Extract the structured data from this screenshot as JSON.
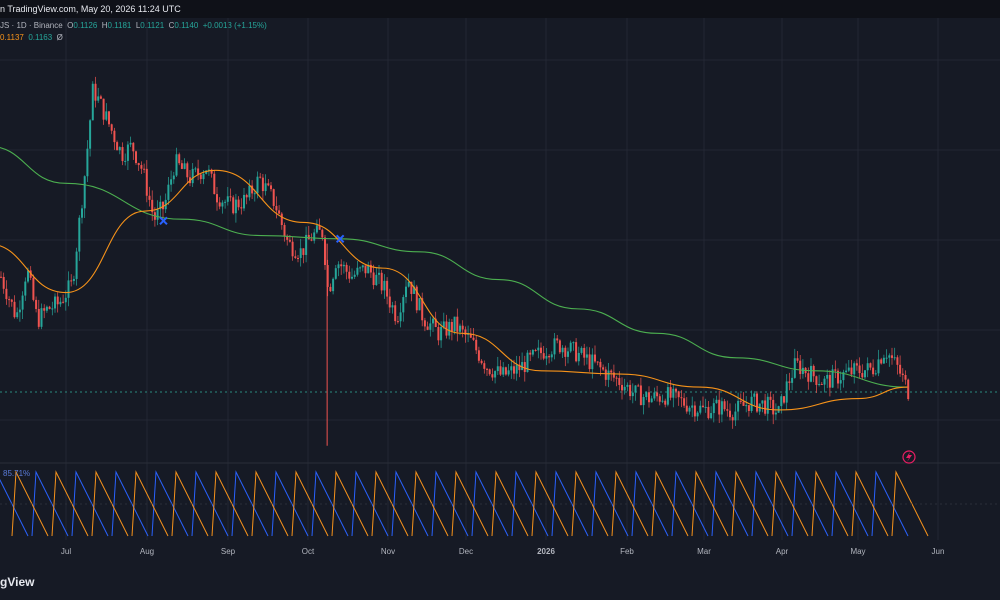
{
  "header": {
    "text": "n TradingView.com, May 20, 2026 11:24 UTC"
  },
  "legend": {
    "symbol": "JS · 1D · Binance",
    "o_label": "O",
    "o": "0.1126",
    "h_label": "H",
    "h": "0.1181",
    "l_label": "L",
    "l": "0.1121",
    "c_label": "C",
    "c": "0.1140",
    "change": "+0.0013 (+1.15%)",
    "ma1": "0.1137",
    "ma2": "0.1163",
    "ma3": "Ø"
  },
  "oscillator": {
    "label": "85.71%",
    "colors": [
      "#f7931a",
      "#2962ff"
    ]
  },
  "brand": {
    "text": "gView"
  },
  "chart_data": {
    "type": "candlestick",
    "x_ticks": [
      "Jul",
      "Aug",
      "Sep",
      "Oct",
      "Nov",
      "Dec",
      "2026",
      "Feb",
      "Mar",
      "Apr",
      "May",
      "Jun"
    ],
    "last_price": 0.114,
    "colors": {
      "up": "#26a69a",
      "down": "#ef5350",
      "ma_fast": "#f7931a",
      "ma_slow": "#4caf50",
      "cross": "#2962ff"
    },
    "price_keypoints": [
      [
        "Jun 01",
        0.175
      ],
      [
        "Jun 06",
        0.185
      ],
      [
        "Jun 12",
        0.16
      ],
      [
        "Jun 16",
        0.19
      ],
      [
        "Jun 20",
        0.158
      ],
      [
        "Jun 24",
        0.165
      ],
      [
        "Jun 28",
        0.168
      ],
      [
        "Jul 03",
        0.18
      ],
      [
        "Jul 08",
        0.25
      ],
      [
        "Jul 11",
        0.3
      ],
      [
        "Jul 14",
        0.29
      ],
      [
        "Jul 18",
        0.275
      ],
      [
        "Jul 22",
        0.26
      ],
      [
        "Jul 26",
        0.265
      ],
      [
        "Jul 30",
        0.25
      ],
      [
        "Aug 04",
        0.22
      ],
      [
        "Aug 08",
        0.228
      ],
      [
        "Aug 12",
        0.255
      ],
      [
        "Aug 18",
        0.245
      ],
      [
        "Aug 24",
        0.252
      ],
      [
        "Aug 28",
        0.235
      ],
      [
        "Sep 03",
        0.228
      ],
      [
        "Sep 09",
        0.232
      ],
      [
        "Sep 14",
        0.245
      ],
      [
        "Sep 20",
        0.23
      ],
      [
        "Sep 25",
        0.205
      ],
      [
        "Sep 30",
        0.2
      ],
      [
        "Oct 04",
        0.21
      ],
      [
        "Oct 08",
        0.212
      ],
      [
        "Oct 10",
        0.175
      ],
      [
        "Oct 13",
        0.195
      ],
      [
        "Oct 19",
        0.185
      ],
      [
        "Oct 25",
        0.19
      ],
      [
        "Nov 01",
        0.178
      ],
      [
        "Nov 06",
        0.16
      ],
      [
        "Nov 10",
        0.185
      ],
      [
        "Nov 16",
        0.16
      ],
      [
        "Nov 22",
        0.15
      ],
      [
        "Nov 28",
        0.155
      ],
      [
        "Dec 04",
        0.145
      ],
      [
        "Dec 10",
        0.13
      ],
      [
        "Dec 16",
        0.124
      ],
      [
        "Dec 22",
        0.128
      ],
      [
        "Dec 28",
        0.135
      ],
      [
        "Jan 03",
        0.141
      ],
      [
        "Jan 08",
        0.143
      ],
      [
        "Jan 14",
        0.138
      ],
      [
        "Jan 20",
        0.132
      ],
      [
        "Jan 26",
        0.125
      ],
      [
        "Feb 01",
        0.12
      ],
      [
        "Feb 06",
        0.113
      ],
      [
        "Feb 12",
        0.11
      ],
      [
        "Feb 18",
        0.112
      ],
      [
        "Feb 24",
        0.108
      ],
      [
        "Mar 02",
        0.103
      ],
      [
        "Mar 08",
        0.105
      ],
      [
        "Mar 14",
        0.102
      ],
      [
        "Mar 20",
        0.108
      ],
      [
        "Mar 26",
        0.106
      ],
      [
        "Mar 31",
        0.101
      ],
      [
        "Apr 03",
        0.115
      ],
      [
        "Apr 07",
        0.131
      ],
      [
        "Apr 12",
        0.126
      ],
      [
        "Apr 18",
        0.12
      ],
      [
        "Apr 24",
        0.124
      ],
      [
        "Apr 30",
        0.127
      ],
      [
        "May 06",
        0.128
      ],
      [
        "May 11",
        0.14
      ],
      [
        "May 16",
        0.128
      ],
      [
        "May 20",
        0.114
      ]
    ],
    "ma_fast_keypoints": [
      [
        "Jun 01",
        0.205
      ],
      [
        "Jul 01",
        0.175
      ],
      [
        "Aug 01",
        0.225
      ],
      [
        "Aug 28",
        0.25
      ],
      [
        "Oct 01",
        0.218
      ],
      [
        "Nov 01",
        0.19
      ],
      [
        "Dec 01",
        0.15
      ],
      [
        "Jan 01",
        0.127
      ],
      [
        "Feb 01",
        0.125
      ],
      [
        "Mar 01",
        0.117
      ],
      [
        "Apr 01",
        0.103
      ],
      [
        "May 01",
        0.11
      ],
      [
        "May 20",
        0.117
      ]
    ],
    "ma_slow_keypoints": [
      [
        "Jun 01",
        0.265
      ],
      [
        "Jul 01",
        0.242
      ],
      [
        "Aug 15",
        0.22
      ],
      [
        "Sep 15",
        0.21
      ],
      [
        "Oct 15",
        0.208
      ],
      [
        "Nov 15",
        0.2
      ],
      [
        "Dec 15",
        0.183
      ],
      [
        "Jan 15",
        0.165
      ],
      [
        "Feb 15",
        0.15
      ],
      [
        "Mar 15",
        0.135
      ],
      [
        "Apr 15",
        0.127
      ],
      [
        "May 20",
        0.117
      ]
    ],
    "cross_markers": [
      [
        "Aug 08",
        0.219
      ],
      [
        "Oct 15",
        0.208
      ]
    ],
    "wick_spike": [
      "Oct 10",
      0.081
    ]
  }
}
